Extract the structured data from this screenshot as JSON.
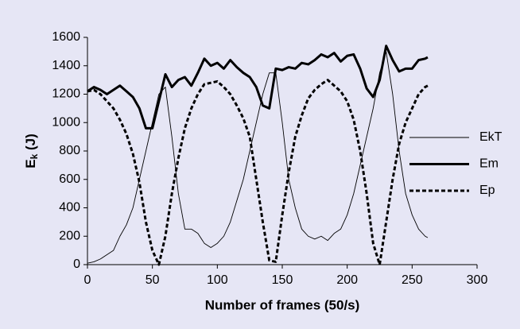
{
  "chart_data": {
    "type": "line",
    "x_label": "Number of frames (50/s)",
    "y_label_parts": [
      "E",
      "k",
      " (J)"
    ],
    "x": [
      0,
      5,
      10,
      15,
      20,
      25,
      30,
      35,
      40,
      45,
      50,
      55,
      60,
      65,
      70,
      75,
      80,
      85,
      90,
      95,
      100,
      105,
      110,
      115,
      120,
      125,
      130,
      135,
      140,
      145,
      150,
      155,
      160,
      165,
      170,
      175,
      180,
      185,
      190,
      195,
      200,
      205,
      210,
      215,
      220,
      225,
      230,
      235,
      240,
      245,
      250,
      255,
      260,
      262
    ],
    "series": [
      {
        "name": "EkT",
        "color": "#000000",
        "values": [
          10,
          20,
          40,
          70,
          100,
          200,
          280,
          400,
          600,
          800,
          1000,
          1200,
          1250,
          900,
          500,
          250,
          250,
          220,
          150,
          120,
          150,
          200,
          300,
          450,
          600,
          800,
          1000,
          1200,
          1350,
          1350,
          1000,
          600,
          400,
          250,
          200,
          180,
          200,
          170,
          220,
          250,
          350,
          500,
          700,
          900,
          1100,
          1350,
          1500,
          1200,
          800,
          500,
          350,
          250,
          200,
          190
        ]
      },
      {
        "name": "Em",
        "color": "#000000",
        "values": [
          1220,
          1250,
          1230,
          1200,
          1230,
          1260,
          1220,
          1180,
          1100,
          960,
          960,
          1150,
          1340,
          1250,
          1300,
          1320,
          1260,
          1350,
          1450,
          1400,
          1420,
          1380,
          1440,
          1390,
          1350,
          1320,
          1250,
          1120,
          1100,
          1380,
          1370,
          1390,
          1380,
          1420,
          1410,
          1440,
          1480,
          1460,
          1490,
          1430,
          1470,
          1480,
          1380,
          1240,
          1180,
          1300,
          1540,
          1440,
          1360,
          1380,
          1380,
          1440,
          1450,
          1460
        ]
      },
      {
        "name": "Ep",
        "color": "#000000",
        "values": [
          1220,
          1230,
          1200,
          1150,
          1100,
          1020,
          920,
          780,
          580,
          300,
          100,
          0,
          200,
          500,
          750,
          960,
          1100,
          1200,
          1270,
          1280,
          1290,
          1250,
          1200,
          1120,
          1030,
          900,
          600,
          300,
          30,
          20,
          350,
          650,
          900,
          1050,
          1170,
          1230,
          1270,
          1300,
          1260,
          1220,
          1150,
          1020,
          800,
          500,
          150,
          0,
          300,
          600,
          850,
          1000,
          1100,
          1200,
          1250,
          1260
        ]
      }
    ],
    "xlim": [
      0,
      300
    ],
    "xticks": [
      0,
      50,
      100,
      150,
      200,
      250,
      300
    ],
    "ylim": [
      0,
      1600
    ],
    "yticks": [
      0,
      200,
      400,
      600,
      800,
      1000,
      1200,
      1400,
      1600
    ],
    "grid": false,
    "legend": "right"
  }
}
